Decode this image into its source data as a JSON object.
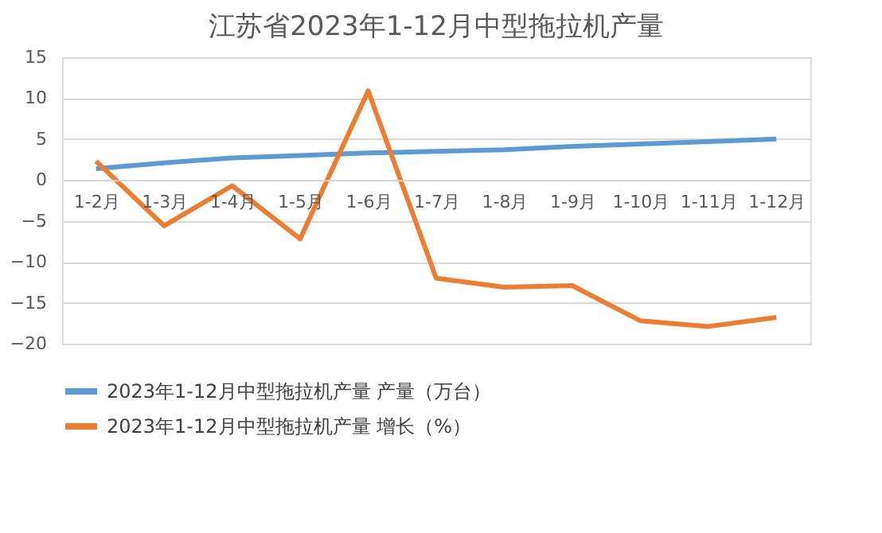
{
  "chart_data": {
    "type": "line",
    "title": "江苏省2023年1-12月中型拖拉机产量",
    "categories": [
      "1-2月",
      "1-3月",
      "1-4月",
      "1-5月",
      "1-6月",
      "1-7月",
      "1-8月",
      "1-9月",
      "1-10月",
      "1-11月",
      "1-12月"
    ],
    "series": [
      {
        "name": "2023年1-12月中型拖拉机产量 产量（万台）",
        "color": "#5b9bd5",
        "values": [
          1.4,
          2.1,
          2.7,
          3.0,
          3.3,
          3.5,
          3.7,
          4.1,
          4.4,
          4.7,
          5.0
        ]
      },
      {
        "name": "2023年1-12月中型拖拉机产量 增长（%）",
        "color": "#ed7d31",
        "values": [
          2.3,
          -5.6,
          -0.7,
          -7.2,
          10.9,
          -12.0,
          -13.1,
          -12.9,
          -17.2,
          -17.9,
          -16.8
        ]
      }
    ],
    "ylim": [
      -20,
      15
    ],
    "yticks": [
      -20,
      -15,
      -10,
      -5,
      0,
      5,
      10,
      15
    ],
    "grid": "y",
    "legend": "bottom",
    "marker": "none",
    "line_style": "solid"
  }
}
